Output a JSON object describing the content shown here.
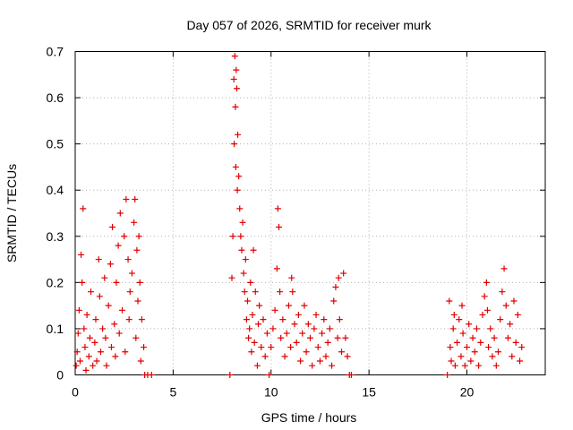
{
  "chart_data": {
    "type": "scatter",
    "title": "Day 057 of 2026, SRMTID for receiver murk",
    "xlabel": "GPS time / hours",
    "ylabel": "SRMTID / TECUs",
    "xlim": [
      0,
      24
    ],
    "ylim": [
      0,
      0.7
    ],
    "x_ticks": [
      0,
      5,
      10,
      15,
      20
    ],
    "y_ticks": [
      0,
      0.1,
      0.2,
      0.3,
      0.4,
      0.5,
      0.6,
      0.7
    ],
    "x_tick_labels": [
      "0",
      "5",
      "10",
      "15",
      "20"
    ],
    "y_tick_labels": [
      "0",
      "0.1",
      "0.2",
      "0.3",
      "0.4",
      "0.5",
      "0.6",
      "0.7"
    ],
    "grid": true,
    "marker": "plus",
    "color": "#e00000",
    "series": [
      {
        "name": "SRMTID",
        "points": [
          [
            0.05,
            0.02
          ],
          [
            0.1,
            0.05
          ],
          [
            0.15,
            0.09
          ],
          [
            0.2,
            0.14
          ],
          [
            0.25,
            0.03
          ],
          [
            0.3,
            0.26
          ],
          [
            0.35,
            0.2
          ],
          [
            0.4,
            0.36
          ],
          [
            0.45,
            0.1
          ],
          [
            0.5,
            0.06
          ],
          [
            0.55,
            0.01
          ],
          [
            0.6,
            0.13
          ],
          [
            0.7,
            0.04
          ],
          [
            0.75,
            0.08
          ],
          [
            0.8,
            0.18
          ],
          [
            0.9,
            0.02
          ],
          [
            1.0,
            0.07
          ],
          [
            1.05,
            0.12
          ],
          [
            1.1,
            0.03
          ],
          [
            1.2,
            0.25
          ],
          [
            1.25,
            0.17
          ],
          [
            1.3,
            0.05
          ],
          [
            1.4,
            0.1
          ],
          [
            1.5,
            0.21
          ],
          [
            1.55,
            0.08
          ],
          [
            1.6,
            0.02
          ],
          [
            1.7,
            0.15
          ],
          [
            1.8,
            0.24
          ],
          [
            1.85,
            0.06
          ],
          [
            1.9,
            0.32
          ],
          [
            2.0,
            0.11
          ],
          [
            2.05,
            0.04
          ],
          [
            2.1,
            0.2
          ],
          [
            2.2,
            0.28
          ],
          [
            2.25,
            0.09
          ],
          [
            2.3,
            0.35
          ],
          [
            2.4,
            0.14
          ],
          [
            2.5,
            0.3
          ],
          [
            2.55,
            0.05
          ],
          [
            2.6,
            0.38
          ],
          [
            2.7,
            0.25
          ],
          [
            2.75,
            0.12
          ],
          [
            2.8,
            0.18
          ],
          [
            2.9,
            0.22
          ],
          [
            3.0,
            0.33
          ],
          [
            3.05,
            0.38
          ],
          [
            3.1,
            0.08
          ],
          [
            3.15,
            0.27
          ],
          [
            3.2,
            0.16
          ],
          [
            3.25,
            0.3
          ],
          [
            3.3,
            0.2
          ],
          [
            3.35,
            0.03
          ],
          [
            3.4,
            0.12
          ],
          [
            3.5,
            0.06
          ],
          [
            3.55,
            0.0
          ],
          [
            3.7,
            0.0
          ],
          [
            3.9,
            0.0
          ],
          [
            7.9,
            0.0
          ],
          [
            8.0,
            0.21
          ],
          [
            8.05,
            0.3
          ],
          [
            8.1,
            0.64
          ],
          [
            8.12,
            0.5
          ],
          [
            8.15,
            0.69
          ],
          [
            8.18,
            0.58
          ],
          [
            8.2,
            0.45
          ],
          [
            8.22,
            0.66
          ],
          [
            8.25,
            0.62
          ],
          [
            8.28,
            0.4
          ],
          [
            8.3,
            0.52
          ],
          [
            8.35,
            0.43
          ],
          [
            8.4,
            0.36
          ],
          [
            8.45,
            0.3
          ],
          [
            8.5,
            0.27
          ],
          [
            8.55,
            0.33
          ],
          [
            8.6,
            0.22
          ],
          [
            8.65,
            0.18
          ],
          [
            8.7,
            0.25
          ],
          [
            8.75,
            0.12
          ],
          [
            8.8,
            0.16
          ],
          [
            8.85,
            0.08
          ],
          [
            8.9,
            0.1
          ],
          [
            8.95,
            0.2
          ],
          [
            9.0,
            0.05
          ],
          [
            9.05,
            0.13
          ],
          [
            9.1,
            0.27
          ],
          [
            9.15,
            0.07
          ],
          [
            9.2,
            0.18
          ],
          [
            9.3,
            0.02
          ],
          [
            9.35,
            0.11
          ],
          [
            9.4,
            0.15
          ],
          [
            9.5,
            0.06
          ],
          [
            9.6,
            0.12
          ],
          [
            9.7,
            0.04
          ],
          [
            9.8,
            0.09
          ],
          [
            9.9,
            0.0
          ],
          [
            10.0,
            0.06
          ],
          [
            10.1,
            0.1
          ],
          [
            10.2,
            0.14
          ],
          [
            10.3,
            0.23
          ],
          [
            10.35,
            0.36
          ],
          [
            10.4,
            0.32
          ],
          [
            10.45,
            0.18
          ],
          [
            10.5,
            0.08
          ],
          [
            10.6,
            0.12
          ],
          [
            10.7,
            0.04
          ],
          [
            10.8,
            0.09
          ],
          [
            10.9,
            0.15
          ],
          [
            11.0,
            0.06
          ],
          [
            11.05,
            0.21
          ],
          [
            11.1,
            0.18
          ],
          [
            11.2,
            0.11
          ],
          [
            11.3,
            0.07
          ],
          [
            11.4,
            0.13
          ],
          [
            11.5,
            0.03
          ],
          [
            11.6,
            0.09
          ],
          [
            11.7,
            0.15
          ],
          [
            11.8,
            0.05
          ],
          [
            11.9,
            0.11
          ],
          [
            12.0,
            0.08
          ],
          [
            12.1,
            0.02
          ],
          [
            12.2,
            0.1
          ],
          [
            12.3,
            0.13
          ],
          [
            12.4,
            0.06
          ],
          [
            12.5,
            0.03
          ],
          [
            12.6,
            0.09
          ],
          [
            12.7,
            0.12
          ],
          [
            12.8,
            0.04
          ],
          [
            12.9,
            0.07
          ],
          [
            13.0,
            0.1
          ],
          [
            13.1,
            0.02
          ],
          [
            13.2,
            0.16
          ],
          [
            13.3,
            0.19
          ],
          [
            13.4,
            0.08
          ],
          [
            13.45,
            0.21
          ],
          [
            13.5,
            0.12
          ],
          [
            13.6,
            0.05
          ],
          [
            13.7,
            0.22
          ],
          [
            13.8,
            0.08
          ],
          [
            13.9,
            0.04
          ],
          [
            14.0,
            0.0
          ],
          [
            14.1,
            0.0
          ],
          [
            19.0,
            0.0
          ],
          [
            19.1,
            0.16
          ],
          [
            19.15,
            0.06
          ],
          [
            19.2,
            0.03
          ],
          [
            19.3,
            0.1
          ],
          [
            19.35,
            0.13
          ],
          [
            19.4,
            0.02
          ],
          [
            19.5,
            0.07
          ],
          [
            19.6,
            0.12
          ],
          [
            19.7,
            0.04
          ],
          [
            19.75,
            0.15
          ],
          [
            19.8,
            0.09
          ],
          [
            19.9,
            0.02
          ],
          [
            20.0,
            0.06
          ],
          [
            20.1,
            0.11
          ],
          [
            20.2,
            0.03
          ],
          [
            20.3,
            0.08
          ],
          [
            20.4,
            0.05
          ],
          [
            20.5,
            0.1
          ],
          [
            20.6,
            0.02
          ],
          [
            20.7,
            0.07
          ],
          [
            20.8,
            0.13
          ],
          [
            20.9,
            0.17
          ],
          [
            21.0,
            0.2
          ],
          [
            21.05,
            0.14
          ],
          [
            21.1,
            0.06
          ],
          [
            21.2,
            0.1
          ],
          [
            21.3,
            0.04
          ],
          [
            21.4,
            0.08
          ],
          [
            21.5,
            0.02
          ],
          [
            21.6,
            0.05
          ],
          [
            21.7,
            0.12
          ],
          [
            21.8,
            0.18
          ],
          [
            21.9,
            0.23
          ],
          [
            22.0,
            0.15
          ],
          [
            22.1,
            0.08
          ],
          [
            22.2,
            0.11
          ],
          [
            22.3,
            0.04
          ],
          [
            22.4,
            0.16
          ],
          [
            22.5,
            0.07
          ],
          [
            22.6,
            0.13
          ],
          [
            22.7,
            0.03
          ],
          [
            22.8,
            0.06
          ]
        ]
      }
    ]
  }
}
